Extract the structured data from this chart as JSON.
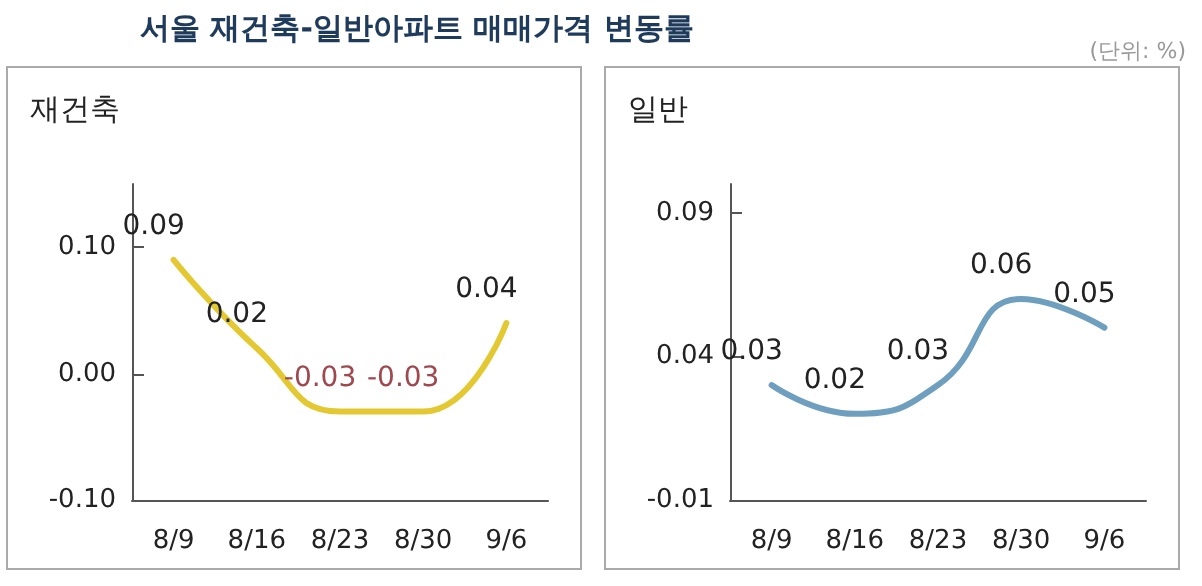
{
  "chart_data": [
    {
      "type": "line",
      "title": "재건축",
      "annotations": [
        "서울 재건축-일반아파트 매매가격 변동률"
      ],
      "categories": [
        "8/9",
        "8/16",
        "8/23",
        "8/30",
        "9/6"
      ],
      "series": [
        {
          "color": "#e3c832",
          "values": [
            0.09,
            0.02,
            -0.03,
            -0.03,
            0.04
          ]
        }
      ],
      "ylim": [
        -0.1,
        0.15
      ],
      "yticks": [
        {
          "value": -0.1,
          "label": "-0.10"
        },
        {
          "value": 0,
          "label": "0.00"
        },
        {
          "value": 0.1,
          "label": "0.10"
        }
      ],
      "data_labels": true,
      "grid": false,
      "marker": "none",
      "line_style": "solid"
    },
    {
      "type": "line",
      "title": "일반",
      "annotations": [
        "(단위: %)"
      ],
      "categories": [
        "8/9",
        "8/16",
        "8/23",
        "8/30",
        "9/6"
      ],
      "series": [
        {
          "color": "#6e9fbf",
          "values": [
            0.03,
            0.02,
            0.03,
            0.06,
            0.05
          ]
        }
      ],
      "ylim": [
        -0.01,
        0.1
      ],
      "yticks": [
        -0.01,
        0.04,
        0.09
      ],
      "data_labels": true,
      "grid": false,
      "marker": "none",
      "line_style": "solid"
    }
  ]
}
